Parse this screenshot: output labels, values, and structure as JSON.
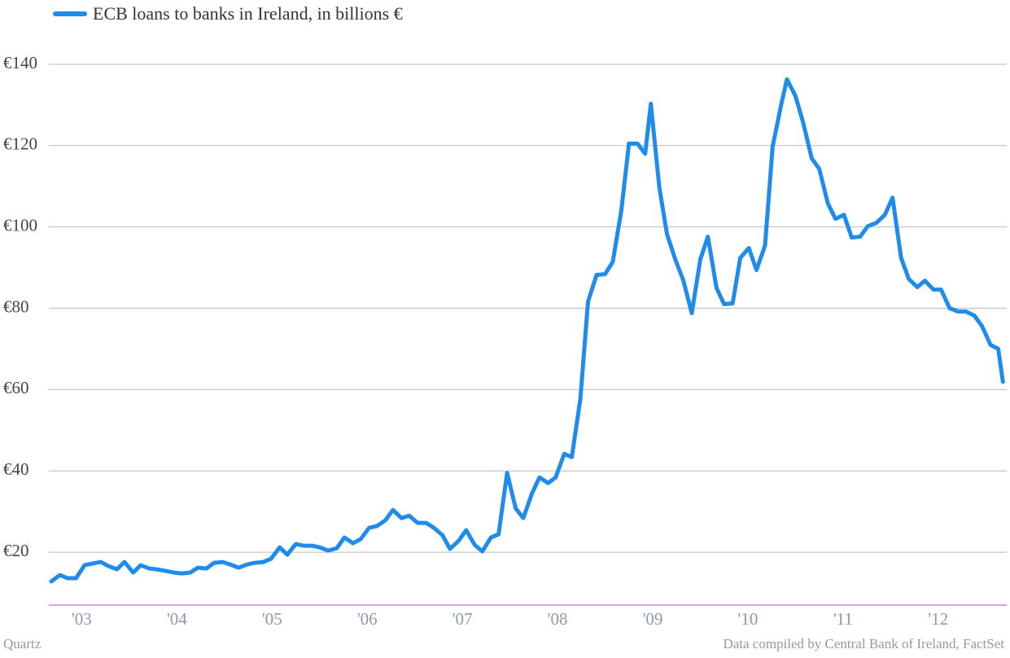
{
  "chart_data": {
    "type": "line",
    "legend_position": "top-left",
    "source": "Data compiled by Central Bank of Ireland, FactSet",
    "credit": "Quartz",
    "x": [
      2002.68,
      2002.77,
      2002.85,
      2002.94,
      2003.03,
      2003.11,
      2003.2,
      2003.28,
      2003.37,
      2003.45,
      2003.54,
      2003.62,
      2003.71,
      2003.79,
      2003.88,
      2003.97,
      2004.05,
      2004.14,
      2004.22,
      2004.31,
      2004.39,
      2004.48,
      2004.56,
      2004.65,
      2004.74,
      2004.82,
      2004.91,
      2004.99,
      2005.08,
      2005.16,
      2005.25,
      2005.33,
      2005.42,
      2005.5,
      2005.59,
      2005.68,
      2005.76,
      2005.85,
      2005.93,
      2006.02,
      2006.1,
      2006.19,
      2006.27,
      2006.36,
      2006.44,
      2006.53,
      2006.62,
      2006.7,
      2006.79,
      2006.87,
      2006.96,
      2007.04,
      2007.13,
      2007.21,
      2007.3,
      2007.38,
      2007.47,
      2007.56,
      2007.64,
      2007.73,
      2007.81,
      2007.9,
      2007.98,
      2008.07,
      2008.15,
      2008.24,
      2008.32,
      2008.41,
      2008.5,
      2008.58,
      2008.67,
      2008.75,
      2008.84,
      2008.92,
      2008.98,
      2009.07,
      2009.15,
      2009.24,
      2009.32,
      2009.41,
      2009.5,
      2009.58,
      2009.67,
      2009.75,
      2009.84,
      2009.92,
      2010.01,
      2010.09,
      2010.18,
      2010.26,
      2010.35,
      2010.41,
      2010.5,
      2010.58,
      2010.67,
      2010.75,
      2010.84,
      2010.92,
      2011.01,
      2011.09,
      2011.18,
      2011.26,
      2011.35,
      2011.44,
      2011.52,
      2011.61,
      2011.69,
      2011.78,
      2011.86,
      2011.95,
      2012.03,
      2012.12,
      2012.21,
      2012.29,
      2012.38,
      2012.46,
      2012.55,
      2012.63,
      2012.68
    ],
    "series": [
      {
        "name": "ECB loans to banks in Ireland, in billions €",
        "color": "#1f8ceb",
        "values": [
          12.8,
          14.4,
          13.6,
          13.6,
          16.8,
          17.2,
          17.6,
          16.6,
          15.8,
          17.6,
          15,
          16.8,
          16,
          15.8,
          15.4,
          15,
          14.8,
          15,
          16.2,
          16,
          17.4,
          17.6,
          17,
          16.2,
          17,
          17.4,
          17.6,
          18.4,
          21.2,
          19.4,
          22,
          21.6,
          21.6,
          21.2,
          20.4,
          21,
          23.6,
          22.2,
          23.2,
          26,
          26.4,
          27.8,
          30.4,
          28.4,
          29,
          27.2,
          27.2,
          26,
          24.2,
          20.8,
          22.8,
          25.4,
          21.8,
          20.2,
          23.6,
          24.4,
          39.5,
          30.8,
          28.4,
          34.4,
          38.4,
          37,
          38.4,
          44.2,
          43.4,
          57.7,
          81.6,
          88.2,
          88.4,
          91.4,
          104,
          120.5,
          120.5,
          118,
          130.3,
          109.6,
          98.2,
          91.8,
          87,
          78.8,
          92,
          97.6,
          85,
          81,
          81.2,
          92.4,
          94.8,
          89.4,
          95.4,
          119.7,
          130.1,
          136.3,
          132.2,
          125.7,
          116.9,
          114.3,
          105.8,
          102,
          103,
          97.4,
          97.6,
          100.2,
          101,
          103,
          107.2,
          92.4,
          87.2,
          85.2,
          86.8,
          84.6,
          84.6,
          80,
          79.2,
          79.2,
          78.2,
          75.6,
          71,
          70,
          61.9
        ]
      }
    ],
    "xlim": [
      2002.68,
      2012.72
    ],
    "xticks": [
      {
        "value": 2003,
        "label": "'03"
      },
      {
        "value": 2004,
        "label": "'04"
      },
      {
        "value": 2005,
        "label": "'05"
      },
      {
        "value": 2006,
        "label": "'06"
      },
      {
        "value": 2007,
        "label": "'07"
      },
      {
        "value": 2008,
        "label": "'08"
      },
      {
        "value": 2009,
        "label": "'09"
      },
      {
        "value": 2010,
        "label": "'10"
      },
      {
        "value": 2011,
        "label": "'11"
      },
      {
        "value": 2012,
        "label": "'12"
      }
    ],
    "ylim": [
      7,
      147
    ],
    "yticks": [
      {
        "value": 20,
        "label": "€20"
      },
      {
        "value": 40,
        "label": "€40"
      },
      {
        "value": 60,
        "label": "€60"
      },
      {
        "value": 80,
        "label": "€80"
      },
      {
        "value": 100,
        "label": "€100"
      },
      {
        "value": 120,
        "label": "€120"
      },
      {
        "value": 140,
        "label": "€140"
      }
    ],
    "grid": true
  }
}
